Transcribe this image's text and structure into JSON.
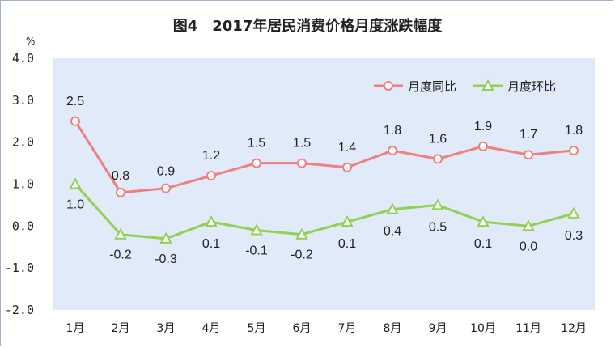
{
  "chart_data": {
    "type": "line",
    "title": "图4　2017年居民消费价格月度涨跌幅度",
    "ylabel": "%",
    "xlabel": "",
    "ylim": [
      -2.0,
      4.0
    ],
    "yticks": [
      "4.0",
      "3.0",
      "2.0",
      "1.0",
      "0.0",
      "-1.0",
      "-2.0"
    ],
    "ytick_values": [
      4.0,
      3.0,
      2.0,
      1.0,
      0.0,
      -1.0,
      -2.0
    ],
    "categories": [
      "1月",
      "2月",
      "3月",
      "4月",
      "5月",
      "6月",
      "7月",
      "8月",
      "9月",
      "10月",
      "11月",
      "12月"
    ],
    "grid": "none",
    "legend": "top-right",
    "series": [
      {
        "name": "月度同比",
        "color": "#f08080",
        "marker": "circle",
        "values": [
          2.5,
          0.8,
          0.9,
          1.2,
          1.5,
          1.5,
          1.4,
          1.8,
          1.6,
          1.9,
          1.7,
          1.8
        ],
        "labels": [
          "2.5",
          "0.8",
          "0.9",
          "1.2",
          "1.5",
          "1.5",
          "1.4",
          "1.8",
          "1.6",
          "1.9",
          "1.7",
          "1.8"
        ]
      },
      {
        "name": "月度环比",
        "color": "#92d050",
        "marker": "triangle",
        "values": [
          1.0,
          -0.2,
          -0.3,
          0.1,
          -0.1,
          -0.2,
          0.1,
          0.4,
          0.5,
          0.1,
          0.0,
          0.3
        ],
        "labels": [
          "1.0",
          "-0.2",
          "-0.3",
          "0.1",
          "-0.1",
          "-0.2",
          "0.1",
          "0.4",
          "0.5",
          "0.1",
          "0.0",
          "0.3"
        ]
      }
    ],
    "plot_background": "#e1eaf8"
  }
}
